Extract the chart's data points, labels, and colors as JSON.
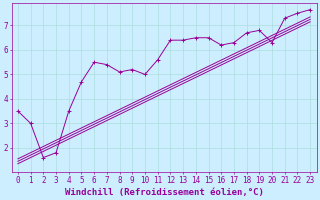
{
  "xlabel": "Windchill (Refroidissement éolien,°C)",
  "bg_color": "#cceeff",
  "line_color": "#990099",
  "xlim": [
    -0.5,
    23.5
  ],
  "ylim": [
    1.0,
    7.9
  ],
  "yticks": [
    2,
    3,
    4,
    5,
    6,
    7
  ],
  "xticks": [
    0,
    1,
    2,
    3,
    4,
    5,
    6,
    7,
    8,
    9,
    10,
    11,
    12,
    13,
    14,
    15,
    16,
    17,
    18,
    19,
    20,
    21,
    22,
    23
  ],
  "line1_x": [
    0,
    1,
    2,
    3,
    4,
    5,
    6,
    7,
    8,
    9,
    10,
    11,
    12,
    13,
    14,
    15,
    16,
    17,
    18,
    19,
    20,
    21,
    22,
    23
  ],
  "line1_y": [
    3.5,
    3.0,
    1.6,
    1.8,
    3.5,
    4.7,
    5.5,
    5.4,
    5.1,
    5.2,
    5.0,
    5.6,
    6.4,
    6.4,
    6.5,
    6.5,
    6.2,
    6.3,
    6.7,
    6.8,
    6.3,
    7.3,
    7.5,
    7.65
  ],
  "line2_x": [
    0,
    23
  ],
  "line2_y": [
    1.55,
    7.35
  ],
  "line3_x": [
    0,
    23
  ],
  "line3_y": [
    1.45,
    7.25
  ],
  "line4_x": [
    0,
    23
  ],
  "line4_y": [
    1.35,
    7.15
  ],
  "grid_color": "#aadddd",
  "font_color": "#990099",
  "xlabel_fontsize": 6.5,
  "tick_fontsize": 5.5
}
